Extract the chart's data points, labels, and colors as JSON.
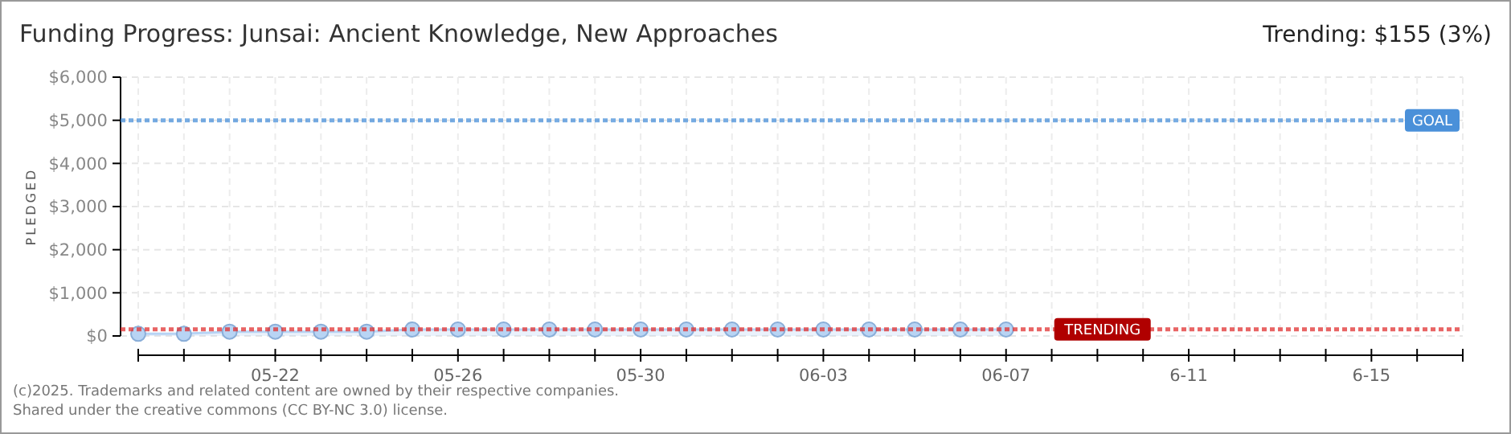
{
  "chart_data": {
    "type": "area",
    "title": "Funding Progress: Junsai: Ancient Knowledge, New Approaches",
    "subtitle": "Trending: $155 (3%)",
    "ylabel": "PLEDGED",
    "x": [
      "--05-19",
      "--05-20",
      "--05-21",
      "--05-22",
      "--05-23",
      "--05-24",
      "--05-25",
      "--05-26",
      "--05-27",
      "--05-28",
      "--05-29",
      "--05-30",
      "--05-31",
      "--06-01",
      "--06-02",
      "--06-03",
      "--06-04",
      "--06-05",
      "--06-06",
      "--06-07"
    ],
    "series": [
      {
        "color": "#b8d4f4",
        "values": [
          50,
          50,
          100,
          100,
          100,
          100,
          150,
          150,
          150,
          150,
          150,
          150,
          150,
          150,
          150,
          150,
          150,
          150,
          150,
          150
        ]
      }
    ],
    "xlim": [
      "--05-19",
      "--06-17"
    ],
    "xticks": [
      {
        "value": "--05-19",
        "label": null
      },
      {
        "value": "--05-20",
        "label": null
      },
      {
        "value": "--05-21",
        "label": null
      },
      {
        "value": "--05-22",
        "label": "05-22"
      },
      {
        "value": "--05-23",
        "label": null
      },
      {
        "value": "--05-24",
        "label": null
      },
      {
        "value": "--05-25",
        "label": null
      },
      {
        "value": "--05-26",
        "label": "05-26"
      },
      {
        "value": "--05-27",
        "label": null
      },
      {
        "value": "--05-28",
        "label": null
      },
      {
        "value": "--05-29",
        "label": null
      },
      {
        "value": "--05-30",
        "label": "05-30"
      },
      {
        "value": "--05-31",
        "label": null
      },
      {
        "value": "--06-01",
        "label": null
      },
      {
        "value": "--06-02",
        "label": null
      },
      {
        "value": "--06-03",
        "label": "06-03"
      },
      {
        "value": "--06-04",
        "label": null
      },
      {
        "value": "--06-05",
        "label": null
      },
      {
        "value": "--06-06",
        "label": null
      },
      {
        "value": "--06-07",
        "label": "06-07"
      },
      {
        "value": "--06-08",
        "label": null
      },
      {
        "value": "--06-09",
        "label": null
      },
      {
        "value": "--06-10",
        "label": null
      },
      {
        "value": "--06-11",
        "label": "6-11"
      },
      {
        "value": "--06-12",
        "label": null
      },
      {
        "value": "--06-13",
        "label": null
      },
      {
        "value": "--06-14",
        "label": null
      },
      {
        "value": "--06-15",
        "label": "6-15"
      },
      {
        "value": "--06-16",
        "label": null
      },
      {
        "value": "--06-17",
        "label": null
      }
    ],
    "ylim": [
      0,
      6000
    ],
    "yticks": [
      {
        "value": 0,
        "label": "$0"
      },
      {
        "value": 1000,
        "label": "$1,000"
      },
      {
        "value": 2000,
        "label": "$2,000"
      },
      {
        "value": 3000,
        "label": "$3,000"
      },
      {
        "value": 4000,
        "label": "$4,000"
      },
      {
        "value": 5000,
        "label": "$5,000"
      },
      {
        "value": 6000,
        "label": "$6,000"
      }
    ],
    "grid": true,
    "marker": "circle",
    "ref_lines": [
      {
        "axis": "y",
        "value": 5000,
        "label": "GOAL",
        "color": "#4a90d9",
        "line_style": "dotted"
      },
      {
        "axis": "y",
        "value": 155,
        "label": "TRENDING",
        "color": "#e03030",
        "line_style": "dotted"
      }
    ],
    "annotations": [
      "(c)2025. Trademarks and related content are owned by their respective companies.",
      "Shared under the creative commons (CC BY-NC 3.0) license."
    ]
  }
}
